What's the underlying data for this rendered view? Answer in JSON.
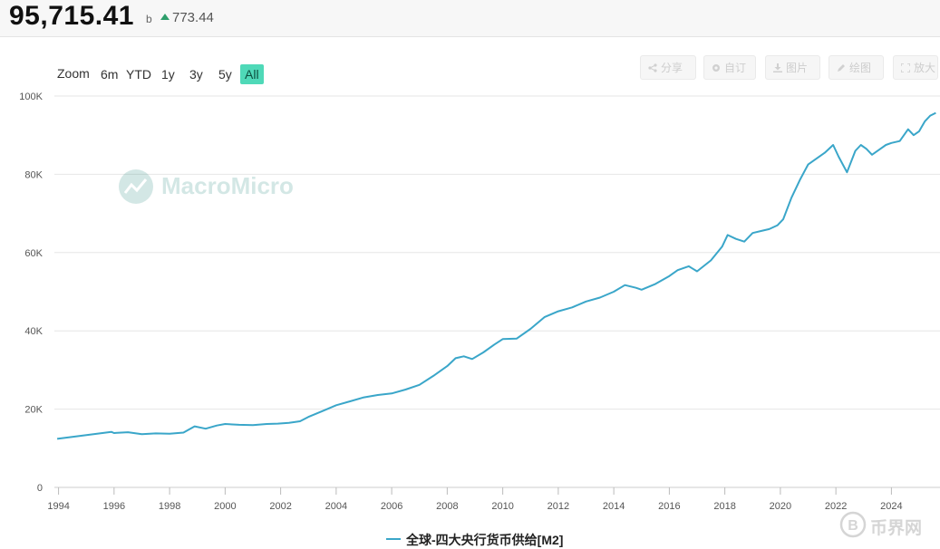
{
  "header": {
    "value": "95,715.41",
    "unit": "b",
    "change": "773.44"
  },
  "zoom": {
    "label": "Zoom",
    "buttons": [
      "6m",
      "YTD",
      "1y",
      "3y",
      "5y",
      "All"
    ],
    "active": "All"
  },
  "toolbar": {
    "share": "分享",
    "subscribe": "自订",
    "image": "图片",
    "draw": "绘图",
    "expand": "放大"
  },
  "watermark": "MacroMicro",
  "site_logo": "币界网",
  "colors": {
    "line": "#3aa6c9",
    "active_zoom": "#4fd9b8",
    "up": "#2e9e6b"
  },
  "chart_data": {
    "type": "line",
    "title": "",
    "xlabel": "",
    "ylabel": "",
    "ylim": [
      0,
      100000
    ],
    "yticks": [
      0,
      20000,
      40000,
      60000,
      80000,
      100000
    ],
    "ytick_labels": [
      "0",
      "20K",
      "40K",
      "60K",
      "80K",
      "100K"
    ],
    "xlim": [
      1993.85,
      2025.75
    ],
    "xticks": [
      1994,
      1996,
      1998,
      2000,
      2002,
      2004,
      2006,
      2008,
      2010,
      2012,
      2014,
      2016,
      2018,
      2020,
      2022,
      2024
    ],
    "grid": true,
    "legend_position": "bottom-center",
    "series": [
      {
        "name": "全球-四大央行货币供给[M2]",
        "x": [
          1993.95,
          1995.9,
          1996.0,
          1996.5,
          1997.0,
          1997.5,
          1998.0,
          1998.5,
          1998.9,
          1999.3,
          1999.7,
          2000.0,
          2000.5,
          2001.0,
          2001.5,
          2001.9,
          2002.3,
          2002.7,
          2003.0,
          2003.5,
          2004.0,
          2004.5,
          2005.0,
          2005.5,
          2006.0,
          2006.5,
          2007.0,
          2007.5,
          2008.0,
          2008.3,
          2008.6,
          2008.9,
          2009.3,
          2009.7,
          2010.0,
          2010.5,
          2011.0,
          2011.5,
          2012.0,
          2012.5,
          2013.0,
          2013.5,
          2014.0,
          2014.4,
          2014.8,
          2015.0,
          2015.5,
          2016.0,
          2016.3,
          2016.7,
          2017.0,
          2017.5,
          2017.9,
          2018.1,
          2018.4,
          2018.7,
          2019.0,
          2019.3,
          2019.6,
          2019.9,
          2020.1,
          2020.4,
          2020.7,
          2021.0,
          2021.3,
          2021.6,
          2021.9,
          2022.1,
          2022.4,
          2022.7,
          2022.9,
          2023.1,
          2023.3,
          2023.6,
          2023.8,
          2024.0,
          2024.3,
          2024.6,
          2024.8,
          2025.0,
          2025.2,
          2025.4,
          2025.6
        ],
        "values": [
          12400,
          14200,
          13900,
          14100,
          13600,
          13800,
          13700,
          14000,
          15600,
          15000,
          15800,
          16200,
          16000,
          15900,
          16200,
          16300,
          16500,
          16900,
          18000,
          19500,
          21000,
          22000,
          23000,
          23600,
          24000,
          25000,
          26200,
          28500,
          31000,
          33000,
          33500,
          32800,
          34500,
          36500,
          37900,
          38000,
          40500,
          43500,
          45000,
          46000,
          47500,
          48500,
          50000,
          51700,
          51000,
          50500,
          52000,
          54000,
          55500,
          56500,
          55200,
          58000,
          61500,
          64500,
          63500,
          62800,
          65000,
          65500,
          66000,
          67000,
          68500,
          74000,
          78500,
          82500,
          84000,
          85500,
          87500,
          84500,
          80500,
          86000,
          87500,
          86500,
          85000,
          86500,
          87500,
          88000,
          88500,
          91500,
          90000,
          91000,
          93500,
          95000,
          95700
        ]
      }
    ]
  }
}
